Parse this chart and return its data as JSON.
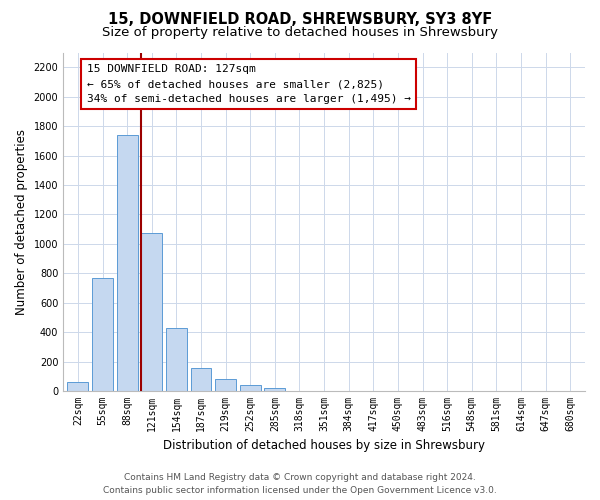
{
  "title": "15, DOWNFIELD ROAD, SHREWSBURY, SY3 8YF",
  "subtitle": "Size of property relative to detached houses in Shrewsbury",
  "xlabel": "Distribution of detached houses by size in Shrewsbury",
  "ylabel": "Number of detached properties",
  "bar_labels": [
    "22sqm",
    "55sqm",
    "88sqm",
    "121sqm",
    "154sqm",
    "187sqm",
    "219sqm",
    "252sqm",
    "285sqm",
    "318sqm",
    "351sqm",
    "384sqm",
    "417sqm",
    "450sqm",
    "483sqm",
    "516sqm",
    "548sqm",
    "581sqm",
    "614sqm",
    "647sqm",
    "680sqm"
  ],
  "bar_values": [
    60,
    770,
    1740,
    1075,
    430,
    155,
    85,
    42,
    22,
    0,
    0,
    0,
    0,
    0,
    0,
    0,
    0,
    0,
    0,
    0,
    0
  ],
  "bar_color": "#c5d8f0",
  "bar_edge_color": "#5b9bd5",
  "marker_line_color": "#9b0000",
  "marker_label_line1": "15 DOWNFIELD ROAD: 127sqm",
  "marker_label_line2": "← 65% of detached houses are smaller (2,825)",
  "marker_label_line3": "34% of semi-detached houses are larger (1,495) →",
  "annotation_box_color": "#ffffff",
  "annotation_box_edge": "#cc0000",
  "ylim": [
    0,
    2300
  ],
  "yticks": [
    0,
    200,
    400,
    600,
    800,
    1000,
    1200,
    1400,
    1600,
    1800,
    2000,
    2200
  ],
  "footer_line1": "Contains HM Land Registry data © Crown copyright and database right 2024.",
  "footer_line2": "Contains public sector information licensed under the Open Government Licence v3.0.",
  "bg_color": "#ffffff",
  "grid_color": "#cdd8ea",
  "title_fontsize": 10.5,
  "subtitle_fontsize": 9.5,
  "axis_label_fontsize": 8.5,
  "tick_fontsize": 7,
  "annotation_fontsize": 8,
  "footer_fontsize": 6.5
}
